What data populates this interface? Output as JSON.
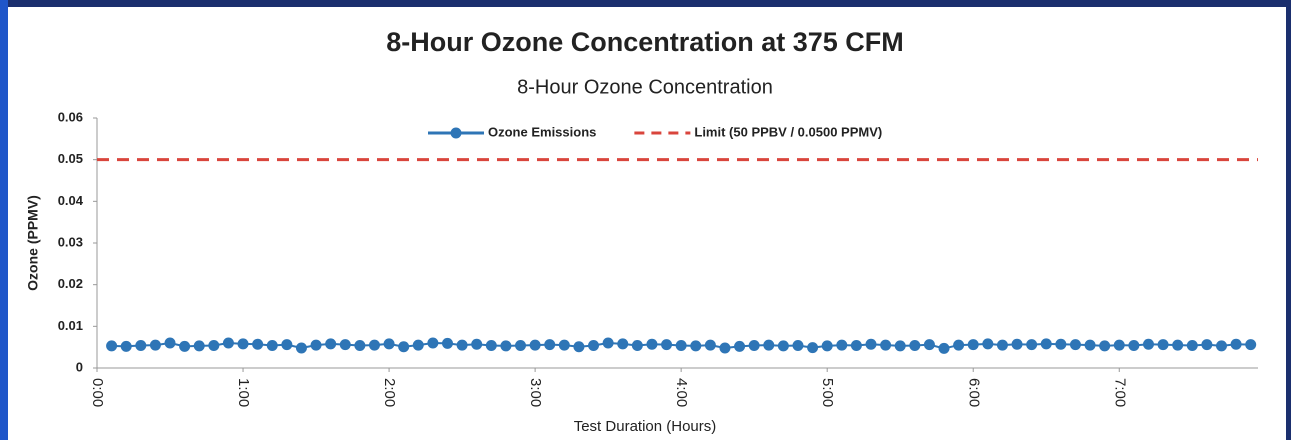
{
  "chart_data": {
    "type": "line",
    "title": "8-Hour Ozone Concentration at 375 CFM",
    "subtitle": "8-Hour Ozone Concentration",
    "x_label": "Test Duration (Hours)",
    "y_label": "Ozone (PPMV)",
    "xlim": [
      0,
      7.95
    ],
    "xticks": [
      {
        "value": 0,
        "label": "0:00"
      },
      {
        "value": 1,
        "label": "1:00"
      },
      {
        "value": 2,
        "label": "2:00"
      },
      {
        "value": 3,
        "label": "3:00"
      },
      {
        "value": 4,
        "label": "4:00"
      },
      {
        "value": 5,
        "label": "5:00"
      },
      {
        "value": 6,
        "label": "6:00"
      },
      {
        "value": 7,
        "label": "7:00"
      }
    ],
    "ylim": [
      0,
      0.06
    ],
    "yticks": [
      0,
      0.01,
      0.02,
      0.03,
      0.04,
      0.05,
      0.06
    ],
    "grid": false,
    "legend": "top",
    "series": [
      {
        "name": "Ozone Emissions",
        "color": "#2e75b6",
        "marker": "circle",
        "x": [
          0.1,
          0.2,
          0.3,
          0.4,
          0.5,
          0.6,
          0.7,
          0.8,
          0.9,
          1.0,
          1.1,
          1.2,
          1.3,
          1.4,
          1.5,
          1.6,
          1.7,
          1.8,
          1.9,
          2.0,
          2.1,
          2.2,
          2.3,
          2.4,
          2.5,
          2.6,
          2.7,
          2.8,
          2.9,
          3.0,
          3.1,
          3.2,
          3.3,
          3.4,
          3.5,
          3.6,
          3.7,
          3.8,
          3.9,
          4.0,
          4.1,
          4.2,
          4.3,
          4.4,
          4.5,
          4.6,
          4.7,
          4.8,
          4.9,
          5.0,
          5.1,
          5.2,
          5.3,
          5.4,
          5.5,
          5.6,
          5.7,
          5.8,
          5.9,
          6.0,
          6.1,
          6.2,
          6.3,
          6.4,
          6.5,
          6.6,
          6.7,
          6.8,
          6.9,
          7.0,
          7.1,
          7.2,
          7.3,
          7.4,
          7.5,
          7.6,
          7.7,
          7.8,
          7.9
        ],
        "values": [
          0.0053,
          0.0052,
          0.0054,
          0.0055,
          0.006,
          0.0052,
          0.0053,
          0.0054,
          0.006,
          0.0058,
          0.0057,
          0.0054,
          0.0056,
          0.0048,
          0.0055,
          0.0058,
          0.0056,
          0.0054,
          0.0055,
          0.0058,
          0.0051,
          0.0055,
          0.006,
          0.0059,
          0.0055,
          0.0057,
          0.0054,
          0.0053,
          0.0054,
          0.0055,
          0.0056,
          0.0055,
          0.0051,
          0.0054,
          0.006,
          0.0058,
          0.0054,
          0.0057,
          0.0056,
          0.0054,
          0.0053,
          0.0055,
          0.0048,
          0.0052,
          0.0054,
          0.0055,
          0.0053,
          0.0054,
          0.0049,
          0.0053,
          0.0055,
          0.0054,
          0.0057,
          0.0055,
          0.0053,
          0.0054,
          0.0056,
          0.0047,
          0.0055,
          0.0056,
          0.0058,
          0.0055,
          0.0057,
          0.0056,
          0.0058,
          0.0057,
          0.0056,
          0.0055,
          0.0053,
          0.0055,
          0.0054,
          0.0057,
          0.0056,
          0.0055,
          0.0054,
          0.0056,
          0.0053,
          0.0057,
          0.0056
        ]
      },
      {
        "name": "Limit (50 PPBV / 0.0500 PPMV)",
        "color": "#d9453c",
        "dashed": true,
        "x": [
          0,
          7.95
        ],
        "values": [
          0.05,
          0.05
        ]
      }
    ]
  }
}
